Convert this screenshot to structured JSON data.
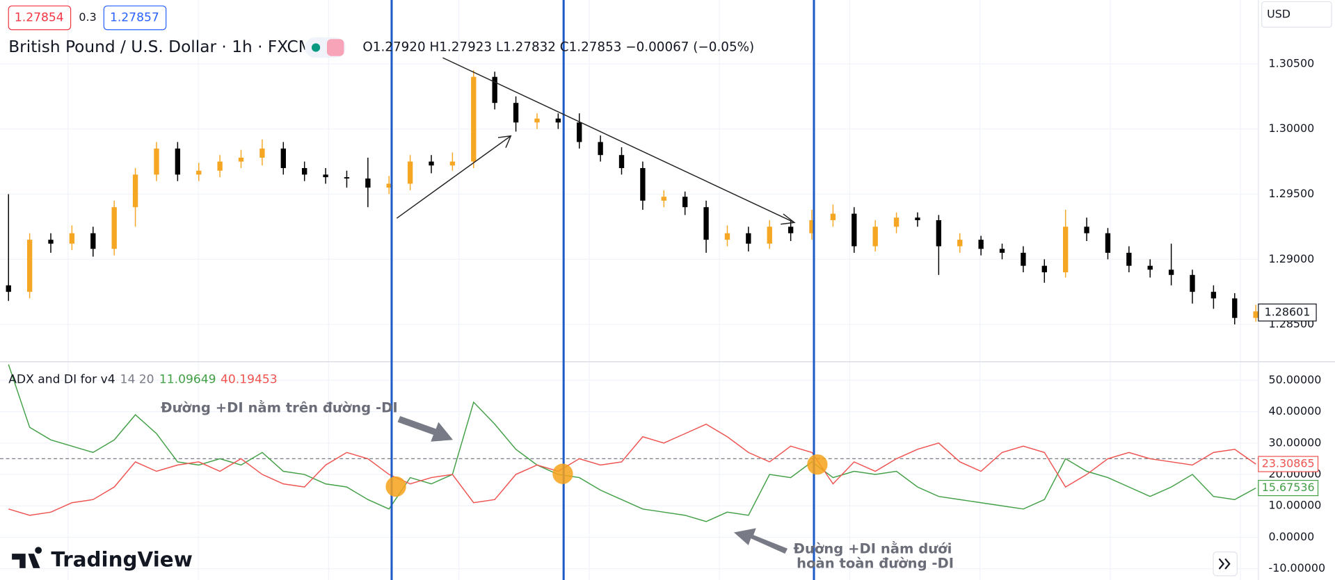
{
  "ui": {
    "bid": "1.27854",
    "spread": "0.3",
    "ask": "1.27857",
    "symbol": "British Pound / U.S. Dollar · 1h · FXCM",
    "ohlc": "O1.27920 H1.27923 L1.27832 C1.27853 −0.00067 (−0.05%)",
    "currency": "USD",
    "last_price": "1.28601",
    "logo": "TradingView",
    "annotations": [
      "Đường +DI nằm trên đường -DI",
      "Đường +DI nằm dưới",
      "hoàn toàn đường -DI"
    ]
  },
  "chart_data": [
    {
      "type": "candlestick",
      "up_color": "#f5a623",
      "down_color": "#000000",
      "ylim": [
        1.2822,
        1.3099
      ],
      "yticks": [
        {
          "value": 1.285,
          "label": "1.28500"
        },
        {
          "value": 1.29,
          "label": "1.29000"
        },
        {
          "value": 1.295,
          "label": "1.29500"
        },
        {
          "value": 1.3,
          "label": "1.30000"
        },
        {
          "value": 1.305,
          "label": "1.30500"
        }
      ],
      "open": [
        1.288,
        1.2875,
        1.2915,
        1.2912,
        1.292,
        1.2908,
        1.294,
        1.2965,
        1.2985,
        1.2965,
        1.2968,
        1.2975,
        1.2978,
        1.2985,
        1.297,
        1.2965,
        1.2963,
        1.2962,
        1.2955,
        1.2958,
        1.2975,
        1.2972,
        1.2975,
        1.304,
        1.302,
        1.3005,
        1.3008,
        1.3005,
        1.299,
        1.298,
        1.297,
        1.2945,
        1.2948,
        1.294,
        1.2915,
        1.292,
        1.2912,
        1.2925,
        1.292,
        1.293,
        1.2935,
        1.291,
        1.2925,
        1.2932,
        1.293,
        1.291,
        1.2915,
        1.2908,
        1.2905,
        1.2895,
        1.289,
        1.2925,
        1.292,
        1.2905,
        1.2895,
        1.2892,
        1.2888,
        1.2875,
        1.287,
        1.2855
      ],
      "high": [
        1.295,
        1.292,
        1.292,
        1.2926,
        1.2925,
        1.2945,
        1.297,
        1.299,
        1.299,
        1.2974,
        1.298,
        1.2984,
        1.2992,
        1.299,
        1.2975,
        1.297,
        1.2968,
        1.2978,
        1.2964,
        1.298,
        1.298,
        1.2982,
        1.3045,
        1.3044,
        1.3025,
        1.3012,
        1.3012,
        1.3012,
        1.2995,
        1.2986,
        1.2975,
        1.2953,
        1.2952,
        1.2945,
        1.2926,
        1.2925,
        1.293,
        1.293,
        1.2938,
        1.2942,
        1.294,
        1.293,
        1.2936,
        1.2936,
        1.2934,
        1.292,
        1.2918,
        1.2912,
        1.291,
        1.29,
        1.2938,
        1.2932,
        1.2924,
        1.291,
        1.29,
        1.2912,
        1.2892,
        1.288,
        1.2874,
        1.2865
      ],
      "low": [
        1.2868,
        1.287,
        1.2905,
        1.2907,
        1.2902,
        1.2903,
        1.2925,
        1.296,
        1.296,
        1.296,
        1.2963,
        1.297,
        1.2972,
        1.2965,
        1.296,
        1.2958,
        1.2955,
        1.294,
        1.295,
        1.2953,
        1.2966,
        1.2968,
        1.297,
        1.3015,
        1.2998,
        1.3,
        1.3,
        1.2985,
        1.2975,
        1.2965,
        1.2938,
        1.294,
        1.2934,
        1.2905,
        1.291,
        1.2906,
        1.2908,
        1.2914,
        1.2915,
        1.2925,
        1.2905,
        1.2906,
        1.292,
        1.2925,
        1.2888,
        1.2905,
        1.2903,
        1.29,
        1.289,
        1.2882,
        1.2886,
        1.2914,
        1.29,
        1.289,
        1.2886,
        1.288,
        1.2866,
        1.2862,
        1.285,
        1.2852
      ],
      "close": [
        1.2875,
        1.2915,
        1.2912,
        1.292,
        1.2908,
        1.294,
        1.2965,
        1.2985,
        1.2965,
        1.2968,
        1.2975,
        1.2978,
        1.2985,
        1.297,
        1.2965,
        1.2963,
        1.2962,
        1.2955,
        1.2958,
        1.2975,
        1.2972,
        1.2975,
        1.304,
        1.302,
        1.3005,
        1.3008,
        1.3005,
        1.299,
        1.298,
        1.297,
        1.2945,
        1.2948,
        1.294,
        1.2915,
        1.292,
        1.2912,
        1.2925,
        1.292,
        1.293,
        1.2935,
        1.291,
        1.2925,
        1.2932,
        1.293,
        1.291,
        1.2915,
        1.2908,
        1.2905,
        1.2895,
        1.289,
        1.2925,
        1.292,
        1.2905,
        1.2895,
        1.2892,
        1.2888,
        1.2875,
        1.287,
        1.2855,
        1.286
      ]
    },
    {
      "type": "line",
      "title": "ADX and DI for v4",
      "params": "14 20",
      "legend_values": [
        "11.09649",
        "40.19453"
      ],
      "ylim": [
        -13.6,
        55.6
      ],
      "hline": 25,
      "yticks": [
        {
          "value": -10,
          "label": "-10.00000"
        },
        {
          "value": 0,
          "label": "0.00000"
        },
        {
          "value": 10,
          "label": "10.00000"
        },
        {
          "value": 20,
          "label": "20.00000"
        },
        {
          "value": 30,
          "label": "30.00000"
        },
        {
          "value": 40,
          "label": "40.00000"
        },
        {
          "value": 50,
          "label": "50.00000"
        }
      ],
      "series": [
        {
          "color": "#43a047",
          "tag": "15.67536",
          "values": [
            55,
            35,
            31,
            29,
            27,
            31,
            39,
            33,
            24,
            23,
            25,
            23,
            27,
            21,
            20,
            17,
            16,
            12,
            9,
            19,
            17,
            20,
            43,
            36,
            28,
            23,
            20,
            19,
            15,
            12,
            9,
            8,
            7,
            5,
            8,
            7,
            20,
            19,
            24,
            19,
            21,
            20,
            21,
            16,
            13,
            12,
            11,
            10,
            9,
            12,
            25,
            21,
            19,
            16,
            13,
            16,
            20,
            13,
            12,
            15.68
          ]
        },
        {
          "color": "#ef5350",
          "tag": "23.30865",
          "values": [
            9,
            7,
            8,
            11,
            12,
            16,
            24,
            21,
            23,
            24,
            21,
            25,
            20,
            17,
            16,
            23,
            27,
            25,
            20,
            17,
            19,
            20,
            11,
            12,
            20,
            23,
            21,
            25,
            23,
            24,
            32,
            30,
            33,
            36,
            32,
            27,
            24,
            29,
            27,
            17,
            24,
            21,
            25,
            28,
            30,
            24,
            21,
            27,
            29,
            27,
            16,
            20,
            25,
            27,
            25,
            24,
            23,
            27,
            28,
            23.31
          ]
        }
      ]
    }
  ]
}
